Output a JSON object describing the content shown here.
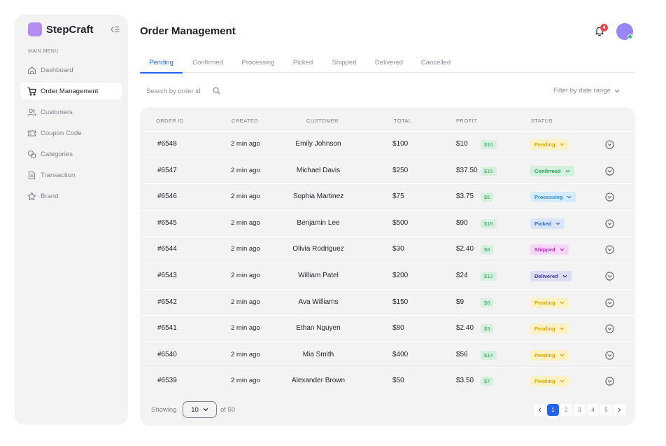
{
  "brand": {
    "name": "StepCraft"
  },
  "sidebar": {
    "menu_title": "MAIN MENU",
    "items": [
      {
        "label": "Dashboard",
        "icon": "home-icon"
      },
      {
        "label": "Order Management",
        "icon": "cart-icon",
        "active": true
      },
      {
        "label": "Customers",
        "icon": "users-icon"
      },
      {
        "label": "Coupon Code",
        "icon": "ticket-icon"
      },
      {
        "label": "Categories",
        "icon": "categories-icon"
      },
      {
        "label": "Transaction",
        "icon": "document-icon"
      },
      {
        "label": "Brand",
        "icon": "star-icon"
      }
    ]
  },
  "header": {
    "title": "Order Management",
    "notification_count": "4"
  },
  "tabs": [
    {
      "label": "Pending",
      "active": true
    },
    {
      "label": "Confirmed"
    },
    {
      "label": "Processing"
    },
    {
      "label": "Picked"
    },
    {
      "label": "Shipped"
    },
    {
      "label": "Delivered"
    },
    {
      "label": "Cancelled"
    }
  ],
  "filters": {
    "search_placeholder": "Search by order id",
    "date_filter_label": "Filter by date range"
  },
  "table": {
    "columns": [
      "ORDER ID",
      "CREATED",
      "CUSTOMER",
      "TOTAL",
      "PROFIT",
      "STATUS"
    ],
    "rows": [
      {
        "id": "#6548",
        "created": "2 min ago",
        "customer": "Emily Johnson",
        "total": "$100",
        "profit": "$10",
        "profit_badge": "$10",
        "status": "Pending"
      },
      {
        "id": "#6547",
        "created": "2 min ago",
        "customer": "Michael Davis",
        "total": "$250",
        "profit": "$37.50",
        "profit_badge": "$15",
        "status": "Confirmed"
      },
      {
        "id": "#6546",
        "created": "2 min ago",
        "customer": "Sophia Martinez",
        "total": "$75",
        "profit": "$3.75",
        "profit_badge": "$5",
        "status": "Processing"
      },
      {
        "id": "#6545",
        "created": "2 min ago",
        "customer": "Benjamin Lee",
        "total": "$500",
        "profit": "$90",
        "profit_badge": "$18",
        "status": "Picked"
      },
      {
        "id": "#6544",
        "created": "2 min ago",
        "customer": "Olivia Rodriguez",
        "total": "$30",
        "profit": "$2.40",
        "profit_badge": "$8",
        "status": "Shipped"
      },
      {
        "id": "#6543",
        "created": "2 min ago",
        "customer": "William Patel",
        "total": "$200",
        "profit": "$24",
        "profit_badge": "$12",
        "status": "Delivered"
      },
      {
        "id": "#6542",
        "created": "2 min ago",
        "customer": "Ava Williams",
        "total": "$150",
        "profit": "$9",
        "profit_badge": "$6",
        "status": "Pending"
      },
      {
        "id": "#6541",
        "created": "2 min ago",
        "customer": "Ethan Nguyen",
        "total": "$80",
        "profit": "$2.40",
        "profit_badge": "$3",
        "status": "Pending"
      },
      {
        "id": "#6540",
        "created": "2 min ago",
        "customer": "Mia Smith",
        "total": "$400",
        "profit": "$56",
        "profit_badge": "$14",
        "status": "Pending"
      },
      {
        "id": "#6539",
        "created": "2 min ago",
        "customer": "Alexander Brown",
        "total": "$50",
        "profit": "$3.50",
        "profit_badge": "$7",
        "status": "Pending"
      }
    ]
  },
  "status_colors": {
    "Pending": {
      "bg": "#fdf2c4",
      "fg": "#e0a500"
    },
    "Confirmed": {
      "bg": "#d3f1dc",
      "fg": "#2f9b5b"
    },
    "Processing": {
      "bg": "#d4ecfb",
      "fg": "#2b8ad0"
    },
    "Picked": {
      "bg": "#d9e5fb",
      "fg": "#2f5fcf"
    },
    "Shipped": {
      "bg": "#f6d6f7",
      "fg": "#b62ec0"
    },
    "Delivered": {
      "bg": "#dcdcf3",
      "fg": "#3b3b8c"
    }
  },
  "footer": {
    "showing_label": "Showing",
    "page_size": "10",
    "of_total": "of 50",
    "pages": [
      "1",
      "2",
      "3",
      "4",
      "5"
    ],
    "current_page": "1"
  },
  "colors": {
    "accent": "#2563eb",
    "brand": "#b48cf0",
    "profit_badge_bg": "#d3f1dc",
    "profit_badge_fg": "#3aa062"
  }
}
